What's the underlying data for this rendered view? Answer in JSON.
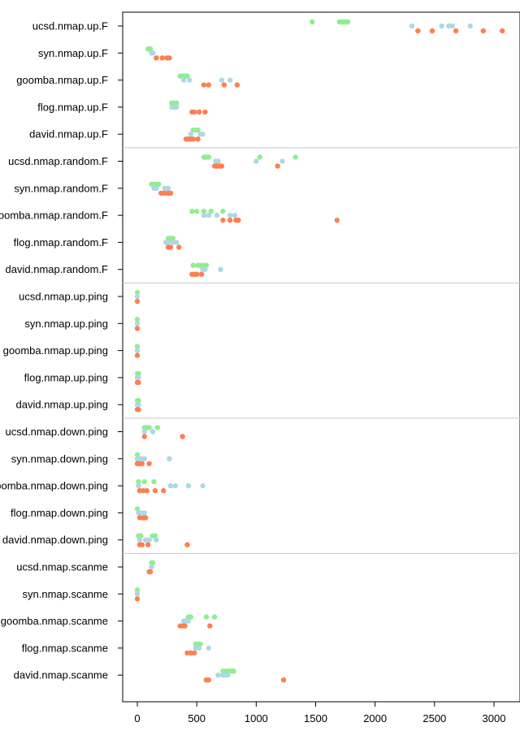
{
  "chart_data": {
    "type": "scatter",
    "title": "",
    "xlabel": "",
    "ylabel": "",
    "xlim": [
      -120,
      3130
    ],
    "xticks": [
      "0",
      "500",
      "1000",
      "1500",
      "2000",
      "2500",
      "3000"
    ],
    "xtick_values": [
      0,
      500,
      1000,
      1500,
      2000,
      2500,
      3000
    ],
    "grid": false,
    "series_colors": {
      "green": "#90ee90",
      "blue": "#add8e6",
      "orange": "#ff7f50"
    },
    "categories": [
      "ucsd.nmap.up.F",
      "syn.nmap.up.F",
      "goomba.nmap.up.F",
      "flog.nmap.up.F",
      "david.nmap.up.F",
      "ucsd.nmap.random.F",
      "syn.nmap.random.F",
      "goomba.nmap.random.F",
      "flog.nmap.random.F",
      "david.nmap.random.F",
      "ucsd.nmap.up.ping",
      "syn.nmap.up.ping",
      "goomba.nmap.up.ping",
      "flog.nmap.up.ping",
      "david.nmap.up.ping",
      "ucsd.nmap.down.ping",
      "syn.nmap.down.ping",
      "goomba.nmap.down.ping",
      "flog.nmap.down.ping",
      "david.nmap.down.ping",
      "ucsd.nmap.scanme",
      "syn.nmap.scanme",
      "goomba.nmap.scanme",
      "flog.nmap.scanme",
      "david.nmap.scanme"
    ],
    "groups": [
      {
        "green": [
          1470,
          1700,
          1720,
          1740,
          1760,
          1770
        ],
        "blue": [
          2310,
          2560,
          2620,
          2650,
          2800
        ],
        "orange": [
          2360,
          2480,
          2680,
          2910,
          3070
        ]
      },
      {
        "green": [
          90,
          100,
          110
        ],
        "blue": [
          120,
          130
        ],
        "orange": [
          160,
          210,
          250,
          270
        ]
      },
      {
        "green": [
          360,
          380,
          400,
          420
        ],
        "blue": [
          390,
          440,
          710,
          780
        ],
        "orange": [
          560,
          600,
          730,
          840
        ]
      },
      {
        "green": [
          290,
          310,
          330
        ],
        "blue": [
          290,
          310,
          330
        ],
        "orange": [
          460,
          480,
          520,
          570
        ]
      },
      {
        "green": [
          470,
          490,
          510
        ],
        "blue": [
          450,
          530,
          550
        ],
        "orange": [
          410,
          430,
          450,
          470,
          510
        ]
      },
      {
        "green": [
          560,
          580,
          600,
          1030,
          1330
        ],
        "blue": [
          660,
          680,
          1000,
          1220
        ],
        "orange": [
          650,
          670,
          690,
          710,
          1180
        ]
      },
      {
        "green": [
          120,
          140,
          160,
          180
        ],
        "blue": [
          140,
          160,
          230,
          260
        ],
        "orange": [
          200,
          230,
          260,
          280
        ]
      },
      {
        "green": [
          460,
          500,
          560,
          620,
          720
        ],
        "blue": [
          560,
          600,
          670,
          780,
          820
        ],
        "orange": [
          720,
          780,
          830,
          850,
          1680
        ]
      },
      {
        "green": [
          260,
          280,
          300
        ],
        "blue": [
          240,
          260,
          300,
          330
        ],
        "orange": [
          260,
          280,
          350
        ]
      },
      {
        "green": [
          470,
          510,
          530,
          550,
          580
        ],
        "blue": [
          550,
          570,
          700
        ],
        "orange": [
          460,
          480,
          500,
          540
        ]
      },
      {
        "green": [
          0
        ],
        "blue": [
          0
        ],
        "orange": [
          0
        ]
      },
      {
        "green": [
          0
        ],
        "blue": [
          0
        ],
        "orange": [
          0
        ]
      },
      {
        "green": [
          0
        ],
        "blue": [
          0
        ],
        "orange": [
          0
        ]
      },
      {
        "green": [
          0,
          10
        ],
        "blue": [
          0,
          10
        ],
        "orange": [
          0,
          10
        ]
      },
      {
        "green": [
          0,
          10
        ],
        "blue": [
          0,
          10
        ],
        "orange": [
          0,
          10
        ]
      },
      {
        "green": [
          60,
          80,
          100,
          170
        ],
        "blue": [
          60,
          130
        ],
        "orange": [
          60,
          380
        ]
      },
      {
        "green": [
          0
        ],
        "blue": [
          0,
          30,
          60,
          270
        ],
        "orange": [
          0,
          20,
          40,
          100
        ]
      },
      {
        "green": [
          10,
          60,
          140
        ],
        "blue": [
          10,
          280,
          320,
          430,
          550
        ],
        "orange": [
          20,
          50,
          80,
          150,
          220
        ]
      },
      {
        "green": [
          0
        ],
        "blue": [
          10,
          30,
          60
        ],
        "orange": [
          20,
          50,
          70
        ]
      },
      {
        "green": [
          10,
          30,
          130,
          150
        ],
        "blue": [
          20,
          70,
          100,
          160
        ],
        "orange": [
          20,
          40,
          90,
          420
        ]
      },
      {
        "green": [
          120,
          130
        ],
        "blue": [
          120
        ],
        "orange": [
          100,
          110
        ]
      },
      {
        "green": [
          0
        ],
        "blue": [
          0
        ],
        "orange": [
          0
        ]
      },
      {
        "green": [
          430,
          450,
          580,
          650
        ],
        "blue": [
          390,
          410,
          430
        ],
        "orange": [
          360,
          380,
          400,
          610
        ]
      },
      {
        "green": [
          490,
          510,
          530
        ],
        "blue": [
          490,
          520,
          600
        ],
        "orange": [
          420,
          450,
          480
        ]
      },
      {
        "green": [
          720,
          740,
          760,
          790,
          810
        ],
        "blue": [
          680,
          720,
          740,
          760
        ],
        "orange": [
          580,
          600,
          1230
        ]
      }
    ]
  }
}
